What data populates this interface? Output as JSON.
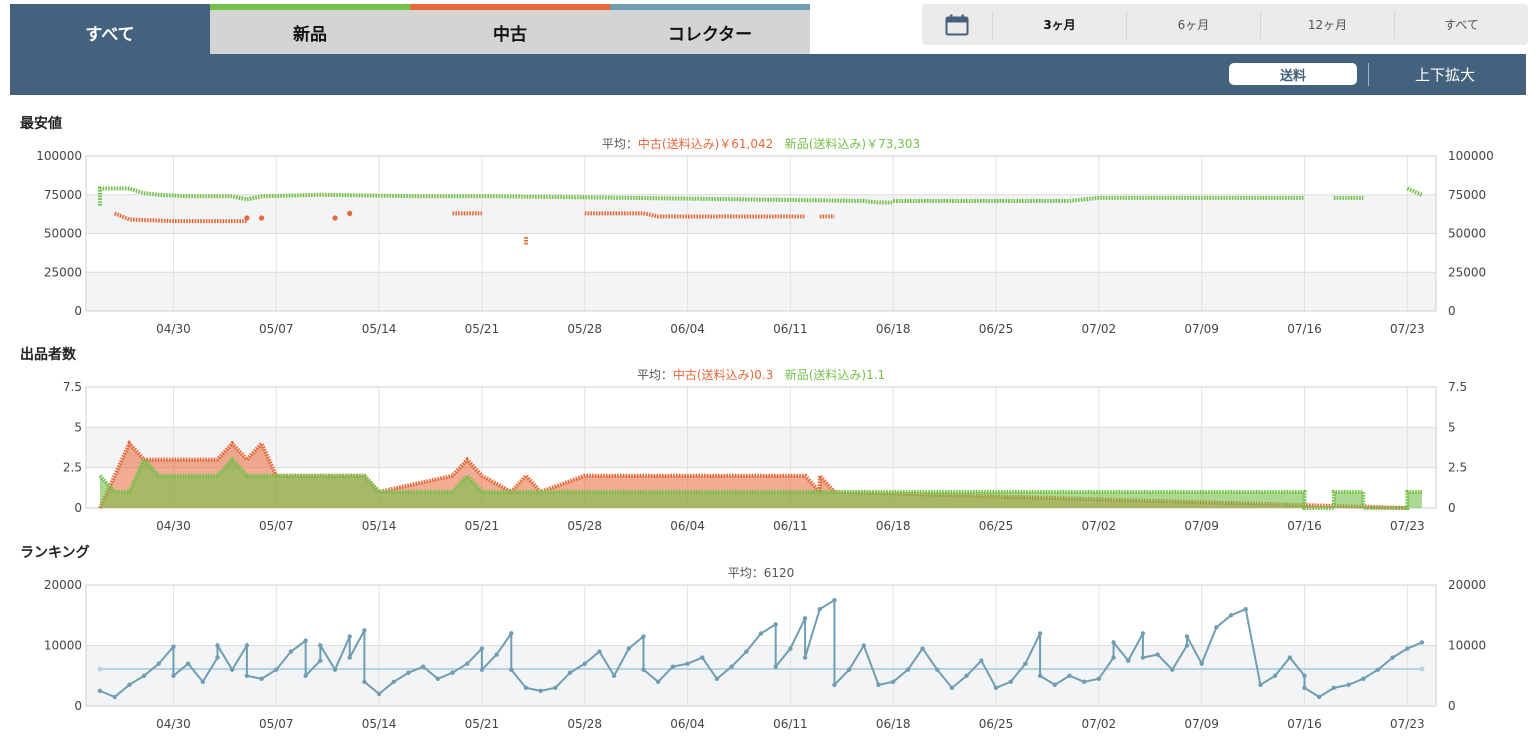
{
  "tabs": [
    {
      "label": "すべて",
      "active": true
    },
    {
      "label": "新品",
      "accent": "#74c04a"
    },
    {
      "label": "中古",
      "accent": "#e8683a"
    },
    {
      "label": "コレクター",
      "accent": "#6f9eb3"
    }
  ],
  "range": {
    "icon": "calendar-icon",
    "options": [
      {
        "label": "3ヶ月",
        "active": true
      },
      {
        "label": "6ヶ月"
      },
      {
        "label": "12ヶ月"
      },
      {
        "label": "すべて"
      }
    ]
  },
  "toolbar": {
    "shipping_label": "送料",
    "zoom_label": "上下拡大"
  },
  "colors": {
    "new": "#74c04a",
    "used": "#e8683a",
    "ranking": "#6f9eb3",
    "avg_line": "#b7d3e2",
    "header": "#44627e"
  },
  "sections": {
    "price": {
      "title": "最安値",
      "avg_prefix": "平均：",
      "avg_used": "中古(送料込み)￥61,042",
      "avg_new": "新品(送料込み)￥73,303"
    },
    "sellers": {
      "title": "出品者数",
      "avg_prefix": "平均：",
      "avg_used": "中古(送料込み)0.3",
      "avg_new": "新品(送料込み)1.1"
    },
    "ranking": {
      "title": "ランキング",
      "avg_text": "平均：6120"
    }
  },
  "chart_data": [
    {
      "type": "scatter",
      "title": "最安値",
      "x_type": "date",
      "x_range": [
        "04/25",
        "07/24"
      ],
      "x_ticks": [
        "04/30",
        "05/07",
        "05/14",
        "05/21",
        "05/28",
        "06/04",
        "06/11",
        "06/18",
        "06/25",
        "07/02",
        "07/09",
        "07/16",
        "07/23"
      ],
      "ylim": [
        0,
        100000
      ],
      "y_ticks": [
        "0",
        "25000",
        "50000",
        "75000",
        "100000"
      ],
      "grid": true,
      "series": [
        {
          "name": "新品(送料込み)",
          "color": "#74c04a",
          "segments": [
            [
              [
                "04/25",
                68000
              ],
              [
                "04/25",
                79000
              ],
              [
                "04/27",
                79000
              ],
              [
                "04/28",
                76000
              ],
              [
                "04/29",
                75000
              ],
              [
                "05/01",
                74000
              ],
              [
                "05/04",
                74000
              ],
              [
                "05/05",
                72000
              ],
              [
                "05/06",
                74000
              ],
              [
                "05/10",
                75000
              ],
              [
                "05/17",
                74000
              ],
              [
                "05/22",
                74000
              ],
              [
                "05/31",
                73000
              ],
              [
                "06/16",
                71000
              ],
              [
                "06/17",
                70000
              ],
              [
                "06/18",
                70000
              ]
            ],
            [
              [
                "06/18",
                71000
              ],
              [
                "06/30",
                71000
              ],
              [
                "07/01",
                72000
              ],
              [
                "07/02",
                73000
              ],
              [
                "07/09",
                73000
              ],
              [
                "07/16",
                73000
              ]
            ],
            [
              [
                "07/18",
                73000
              ],
              [
                "07/20",
                73000
              ]
            ],
            [
              [
                "07/23",
                79000
              ],
              [
                "07/24",
                75000
              ]
            ]
          ]
        },
        {
          "name": "中古(送料込み)",
          "color": "#e8683a",
          "segments": [
            [
              [
                "04/26",
                63000
              ],
              [
                "04/27",
                59000
              ],
              [
                "04/30",
                58000
              ],
              [
                "05/03",
                58000
              ],
              [
                "05/05",
                58000
              ]
            ],
            [
              [
                "05/05",
                60000
              ]
            ],
            [
              [
                "05/06",
                60000
              ]
            ],
            [
              [
                "05/11",
                60000
              ]
            ],
            [
              [
                "05/12",
                63000
              ]
            ],
            [
              [
                "05/19",
                63000
              ],
              [
                "05/21",
                63000
              ]
            ],
            [
              [
                "05/24",
                43000
              ],
              [
                "05/24",
                48000
              ]
            ],
            [
              [
                "05/28",
                63000
              ],
              [
                "06/01",
                63000
              ],
              [
                "06/02",
                61000
              ],
              [
                "06/12",
                61000
              ]
            ],
            [
              [
                "06/13",
                61000
              ],
              [
                "06/14",
                61000
              ]
            ]
          ]
        }
      ]
    },
    {
      "type": "area",
      "title": "出品者数",
      "x_type": "date",
      "x_range": [
        "04/25",
        "07/24"
      ],
      "x_ticks": [
        "04/30",
        "05/07",
        "05/14",
        "05/21",
        "05/28",
        "06/04",
        "06/11",
        "06/18",
        "06/25",
        "07/02",
        "07/09",
        "07/16",
        "07/23"
      ],
      "ylim": [
        0,
        7.5
      ],
      "y_ticks": [
        "0",
        "2.5",
        "5",
        "7.5"
      ],
      "grid": true,
      "series": [
        {
          "name": "中古(送料込み)",
          "color": "#e8683a",
          "points": [
            [
              "04/25",
              0
            ],
            [
              "04/26",
              2
            ],
            [
              "04/27",
              4
            ],
            [
              "04/28",
              3
            ],
            [
              "05/03",
              3
            ],
            [
              "05/04",
              4
            ],
            [
              "05/05",
              3
            ],
            [
              "05/06",
              4
            ],
            [
              "05/07",
              2
            ],
            [
              "05/12",
              2
            ],
            [
              "05/13",
              2
            ],
            [
              "05/14",
              1
            ],
            [
              "05/19",
              2
            ],
            [
              "05/20",
              3
            ],
            [
              "05/21",
              2
            ],
            [
              "05/23",
              1
            ],
            [
              "05/24",
              2
            ],
            [
              "05/25",
              1
            ],
            [
              "05/28",
              2
            ],
            [
              "06/12",
              2
            ],
            [
              "06/13",
              1
            ],
            [
              "06/13",
              2
            ],
            [
              "06/14",
              1
            ],
            [
              "07/23",
              0
            ]
          ]
        },
        {
          "name": "新品(送料込み)",
          "color": "#74c04a",
          "points": [
            [
              "04/25",
              2
            ],
            [
              "04/26",
              1
            ],
            [
              "04/27",
              1
            ],
            [
              "04/28",
              3
            ],
            [
              "04/29",
              2
            ],
            [
              "05/03",
              2
            ],
            [
              "05/04",
              3
            ],
            [
              "05/05",
              2
            ],
            [
              "05/13",
              2
            ],
            [
              "05/14",
              1
            ],
            [
              "05/19",
              1
            ],
            [
              "05/20",
              2
            ],
            [
              "05/21",
              1
            ],
            [
              "07/16",
              1
            ],
            [
              "07/16",
              0
            ],
            [
              "07/18",
              0
            ],
            [
              "07/18",
              1
            ],
            [
              "07/20",
              1
            ],
            [
              "07/20",
              0
            ],
            [
              "07/23",
              0
            ],
            [
              "07/23",
              1
            ],
            [
              "07/24",
              1
            ]
          ]
        }
      ]
    },
    {
      "type": "line",
      "title": "ランキング",
      "x_type": "date",
      "x_range": [
        "04/25",
        "07/24"
      ],
      "x_ticks": [
        "04/30",
        "05/07",
        "05/14",
        "05/21",
        "05/28",
        "06/04",
        "06/11",
        "06/18",
        "06/25",
        "07/02",
        "07/09",
        "07/16",
        "07/23"
      ],
      "ylim": [
        0,
        20000
      ],
      "y_ticks": [
        "0",
        "10000",
        "20000"
      ],
      "grid": true,
      "average": 6120,
      "series": [
        {
          "name": "ランキング",
          "color": "#6f9eb3",
          "points": [
            [
              "04/25",
              2500
            ],
            [
              "04/26",
              1500
            ],
            [
              "04/27",
              3500
            ],
            [
              "04/28",
              5000
            ],
            [
              "04/29",
              7000
            ],
            [
              "04/30",
              9800
            ],
            [
              "04/30",
              5000
            ],
            [
              "05/01",
              7000
            ],
            [
              "05/02",
              4000
            ],
            [
              "05/03",
              8000
            ],
            [
              "05/03",
              10000
            ],
            [
              "05/04",
              6000
            ],
            [
              "05/05",
              10000
            ],
            [
              "05/05",
              5000
            ],
            [
              "05/06",
              4500
            ],
            [
              "05/07",
              6000
            ],
            [
              "05/08",
              9000
            ],
            [
              "05/09",
              10800
            ],
            [
              "05/09",
              5000
            ],
            [
              "05/10",
              7500
            ],
            [
              "05/10",
              10000
            ],
            [
              "05/11",
              6000
            ],
            [
              "05/12",
              11500
            ],
            [
              "05/12",
              8000
            ],
            [
              "05/13",
              12500
            ],
            [
              "05/13",
              4000
            ],
            [
              "05/14",
              2000
            ],
            [
              "05/15",
              4000
            ],
            [
              "05/16",
              5500
            ],
            [
              "05/17",
              6500
            ],
            [
              "05/18",
              4500
            ],
            [
              "05/19",
              5500
            ],
            [
              "05/20",
              7000
            ],
            [
              "05/21",
              9500
            ],
            [
              "05/21",
              6000
            ],
            [
              "05/22",
              8500
            ],
            [
              "05/23",
              12000
            ],
            [
              "05/23",
              6000
            ],
            [
              "05/24",
              3000
            ],
            [
              "05/25",
              2500
            ],
            [
              "05/26",
              3000
            ],
            [
              "05/27",
              5500
            ],
            [
              "05/28",
              7000
            ],
            [
              "05/29",
              9000
            ],
            [
              "05/30",
              5000
            ],
            [
              "05/31",
              9500
            ],
            [
              "06/01",
              11500
            ],
            [
              "06/01",
              6000
            ],
            [
              "06/02",
              4000
            ],
            [
              "06/03",
              6500
            ],
            [
              "06/04",
              7000
            ],
            [
              "06/05",
              8000
            ],
            [
              "06/06",
              4500
            ],
            [
              "06/07",
              6500
            ],
            [
              "06/08",
              9000
            ],
            [
              "06/09",
              12000
            ],
            [
              "06/10",
              13500
            ],
            [
              "06/10",
              6500
            ],
            [
              "06/11",
              9500
            ],
            [
              "06/12",
              14500
            ],
            [
              "06/12",
              8000
            ],
            [
              "06/13",
              16000
            ],
            [
              "06/14",
              17500
            ],
            [
              "06/14",
              3500
            ],
            [
              "06/15",
              6000
            ],
            [
              "06/16",
              10000
            ],
            [
              "06/17",
              3500
            ],
            [
              "06/18",
              4000
            ],
            [
              "06/19",
              6000
            ],
            [
              "06/20",
              9500
            ],
            [
              "06/21",
              6000
            ],
            [
              "06/22",
              3000
            ],
            [
              "06/23",
              5000
            ],
            [
              "06/24",
              7500
            ],
            [
              "06/25",
              3000
            ],
            [
              "06/26",
              4000
            ],
            [
              "06/27",
              7000
            ],
            [
              "06/28",
              12000
            ],
            [
              "06/28",
              5000
            ],
            [
              "06/29",
              3500
            ],
            [
              "06/30",
              5000
            ],
            [
              "07/01",
              4000
            ],
            [
              "07/02",
              4500
            ],
            [
              "07/03",
              8000
            ],
            [
              "07/03",
              10500
            ],
            [
              "07/04",
              7500
            ],
            [
              "07/05",
              12000
            ],
            [
              "07/05",
              8000
            ],
            [
              "07/06",
              8500
            ],
            [
              "07/07",
              6000
            ],
            [
              "07/08",
              10000
            ],
            [
              "07/08",
              11500
            ],
            [
              "07/09",
              7000
            ],
            [
              "07/10",
              13000
            ],
            [
              "07/11",
              15000
            ],
            [
              "07/12",
              16000
            ],
            [
              "07/13",
              3500
            ],
            [
              "07/14",
              5000
            ],
            [
              "07/15",
              8000
            ],
            [
              "07/16",
              5000
            ],
            [
              "07/16",
              3000
            ],
            [
              "07/17",
              1500
            ],
            [
              "07/18",
              3000
            ],
            [
              "07/19",
              3500
            ],
            [
              "07/20",
              4500
            ],
            [
              "07/21",
              6000
            ],
            [
              "07/22",
              8000
            ],
            [
              "07/23",
              9500
            ],
            [
              "07/24",
              10500
            ]
          ]
        }
      ]
    }
  ]
}
